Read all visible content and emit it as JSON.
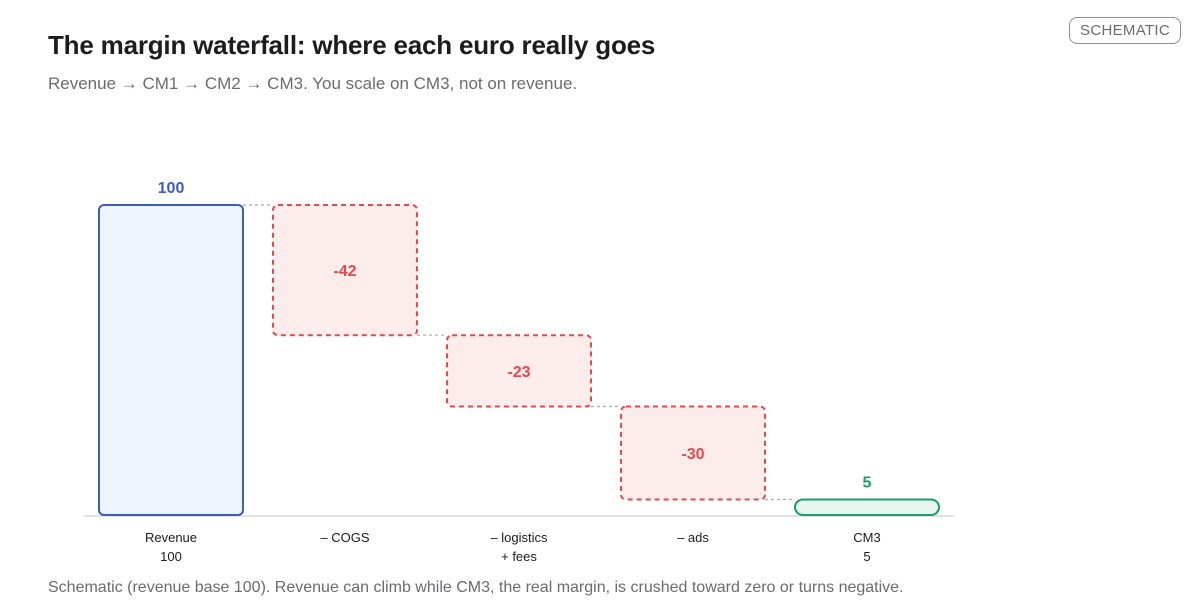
{
  "header": {
    "title": "The margin waterfall: where each euro really goes",
    "subtitle": "Revenue → CM1 → CM2 → CM3. You scale on CM3, not on revenue.",
    "badge": "SCHEMATIC"
  },
  "footnote": "Schematic (revenue base 100). Revenue can climb while CM3, the real margin, is crushed toward zero or turns negative.",
  "colors": {
    "total": "#3b5cc4",
    "total_fill": "#eef3fd",
    "negative": "#e5484d",
    "negative_fill": "#fdecec",
    "result": "#1f9d6b",
    "result_fill": "#e6f6ee",
    "connector": "#a8a8ad",
    "baseline": "#d9d9dc",
    "tick_text": "#1c1c1e"
  },
  "chart_data": {
    "type": "waterfall",
    "ylim": [
      0,
      100
    ],
    "bars": [
      {
        "kind": "total",
        "value": 100,
        "label": "100",
        "tick": [
          "Revenue",
          "100"
        ]
      },
      {
        "kind": "negative",
        "value": -42,
        "label": "-42",
        "tick": [
          "– COGS"
        ]
      },
      {
        "kind": "negative",
        "value": -23,
        "label": "-23",
        "tick": [
          "– logistics",
          "+ fees"
        ]
      },
      {
        "kind": "negative",
        "value": -30,
        "label": "-30",
        "tick": [
          "– ads"
        ]
      },
      {
        "kind": "result",
        "value": 5,
        "label": "5",
        "tick": [
          "CM3",
          "5"
        ]
      }
    ]
  }
}
